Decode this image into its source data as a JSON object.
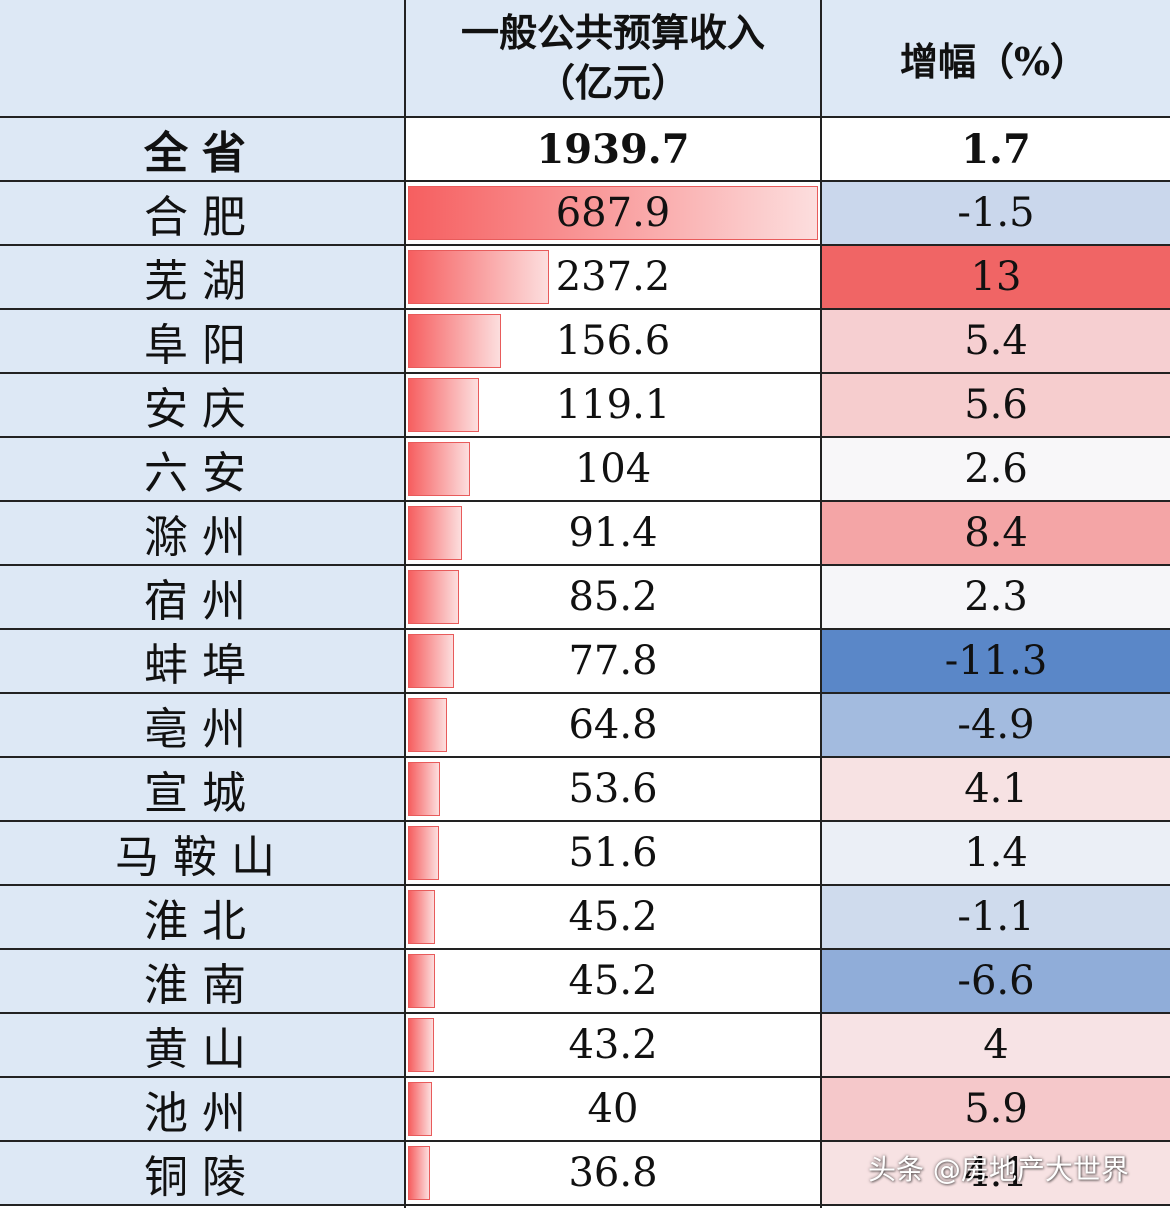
{
  "table": {
    "header_income": "一般公共预算收入",
    "header_income_unit": "（亿元）",
    "header_growth": "增幅（%）"
  },
  "chart_data": {
    "type": "table",
    "columns": [
      "",
      "一般公共预算收入（亿元）",
      "增幅（%）"
    ],
    "total": {
      "name": "全省",
      "income": "1939.7",
      "growth": "1.7"
    },
    "rows": [
      {
        "name": "合肥",
        "income": "687.9",
        "growth": "-1.5"
      },
      {
        "name": "芜湖",
        "income": "237.2",
        "growth": "13"
      },
      {
        "name": "阜阳",
        "income": "156.6",
        "growth": "5.4"
      },
      {
        "name": "安庆",
        "income": "119.1",
        "growth": "5.6"
      },
      {
        "name": "六安",
        "income": "104",
        "growth": "2.6"
      },
      {
        "name": "滁州",
        "income": "91.4",
        "growth": "8.4"
      },
      {
        "name": "宿州",
        "income": "85.2",
        "growth": "2.3"
      },
      {
        "name": "蚌埠",
        "income": "77.8",
        "growth": "-11.3"
      },
      {
        "name": "亳州",
        "income": "64.8",
        "growth": "-4.9"
      },
      {
        "name": "宣城",
        "income": "53.6",
        "growth": "4.1"
      },
      {
        "name": "马鞍山",
        "income": "51.6",
        "growth": "1.4"
      },
      {
        "name": "淮北",
        "income": "45.2",
        "growth": "-1.1"
      },
      {
        "name": "淮南",
        "income": "45.2",
        "growth": "-6.6"
      },
      {
        "name": "黄山",
        "income": "43.2",
        "growth": "4"
      },
      {
        "name": "池州",
        "income": "40",
        "growth": "5.9"
      },
      {
        "name": "铜陵",
        "income": "36.8",
        "growth": "4.1"
      }
    ]
  },
  "colors": {
    "bar_start": "#f65f60",
    "bar_end": "#fcdede",
    "positive_max": "#f06565",
    "negative_max": "#5a87c8",
    "neutral": "#f8f8fa",
    "header_bg": "#dde8f5"
  },
  "watermark": "头条 @房地产大世界"
}
